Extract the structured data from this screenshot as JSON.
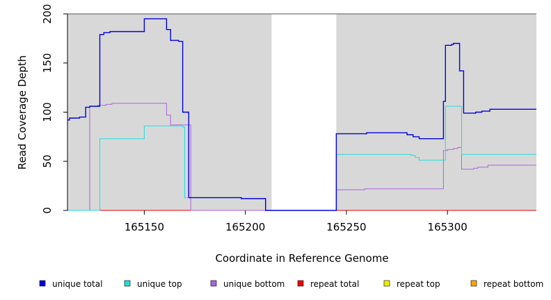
{
  "chart_data": {
    "type": "line",
    "title": "",
    "xlabel": "Coordinate in Reference Genome",
    "ylabel": "Read Coverage Depth",
    "xlim": [
      165112,
      165344
    ],
    "ylim": [
      0,
      200
    ],
    "xticks": [
      165150,
      165200,
      165250,
      165300
    ],
    "yticks": [
      0,
      50,
      100,
      150,
      200
    ],
    "grid": false,
    "legend_position": "bottom",
    "colors": {
      "plot_background": "#d8d8d8",
      "gap_background": "#ffffff"
    },
    "shaded_regions": [
      {
        "x0": 165112,
        "x1": 165213
      },
      {
        "x0": 165245,
        "x1": 165344
      }
    ],
    "series": [
      {
        "name": "unique total",
        "color": "#0000dd",
        "points": [
          [
            165112,
            92
          ],
          [
            165113,
            94
          ],
          [
            165118,
            95
          ],
          [
            165121,
            105
          ],
          [
            165123,
            106
          ],
          [
            165128,
            179
          ],
          [
            165130,
            181
          ],
          [
            165133,
            182
          ],
          [
            165150,
            195
          ],
          [
            165161,
            184
          ],
          [
            165163,
            173
          ],
          [
            165167,
            172
          ],
          [
            165169,
            100
          ],
          [
            165172,
            13
          ],
          [
            165198,
            12
          ],
          [
            165210,
            0
          ],
          [
            165245,
            78
          ],
          [
            165260,
            79
          ],
          [
            165280,
            77
          ],
          [
            165283,
            75
          ],
          [
            165286,
            73
          ],
          [
            165298,
            111
          ],
          [
            165299,
            168
          ],
          [
            165302,
            169
          ],
          [
            165303,
            170
          ],
          [
            165306,
            142
          ],
          [
            165308,
            99
          ],
          [
            165314,
            100
          ],
          [
            165317,
            101
          ],
          [
            165321,
            103
          ],
          [
            165344,
            103
          ]
        ]
      },
      {
        "name": "unique top",
        "color": "#22dddd",
        "points": [
          [
            165112,
            0
          ],
          [
            165128,
            73
          ],
          [
            165150,
            86
          ],
          [
            165169,
            85
          ],
          [
            165170,
            13
          ],
          [
            165172,
            13
          ],
          [
            165198,
            12
          ],
          [
            165210,
            0
          ],
          [
            165245,
            57
          ],
          [
            165282,
            56
          ],
          [
            165284,
            54
          ],
          [
            165286,
            51
          ],
          [
            165299,
            106
          ],
          [
            165307,
            57
          ],
          [
            165344,
            57
          ]
        ]
      },
      {
        "name": "unique bottom",
        "color": "#b060e0",
        "points": [
          [
            165112,
            0
          ],
          [
            165123,
            106
          ],
          [
            165127,
            107
          ],
          [
            165131,
            108
          ],
          [
            165134,
            109
          ],
          [
            165161,
            97
          ],
          [
            165163,
            87
          ],
          [
            165173,
            0
          ],
          [
            165245,
            21
          ],
          [
            165259,
            22
          ],
          [
            165298,
            61
          ],
          [
            165300,
            62
          ],
          [
            165303,
            63
          ],
          [
            165305,
            64
          ],
          [
            165307,
            42
          ],
          [
            165313,
            43
          ],
          [
            165315,
            44
          ],
          [
            165320,
            46
          ],
          [
            165344,
            46
          ]
        ]
      },
      {
        "name": "repeat total",
        "color": "#ee0000",
        "points": [
          [
            165112,
            0
          ],
          [
            165344,
            0
          ]
        ]
      },
      {
        "name": "repeat top",
        "color": "#eeee00",
        "points": [
          [
            165112,
            0
          ],
          [
            165344,
            0
          ]
        ]
      },
      {
        "name": "repeat bottom",
        "color": "#ffa500",
        "points": [
          [
            165112,
            0
          ],
          [
            165344,
            0
          ]
        ]
      }
    ]
  }
}
